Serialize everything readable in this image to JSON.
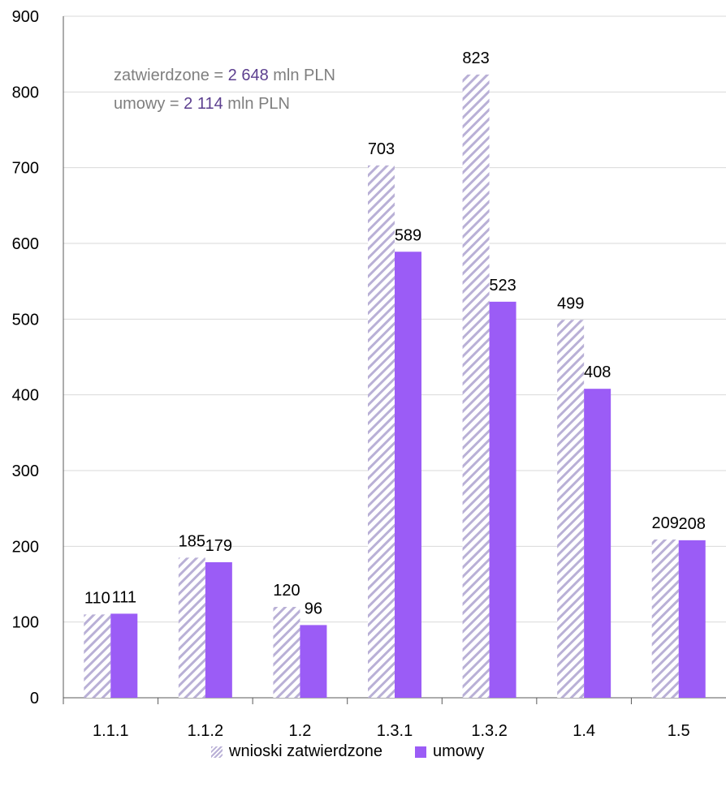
{
  "chart_data": {
    "type": "bar",
    "categories": [
      "1.1.1",
      "1.1.2",
      "1.2",
      "1.3.1",
      "1.3.2",
      "1.4",
      "1.5"
    ],
    "series": [
      {
        "name": "wnioski zatwierdzone",
        "values": [
          110,
          185,
          120,
          703,
          823,
          499,
          209
        ],
        "color": "#b9b0d6",
        "pattern": "hatched"
      },
      {
        "name": "umowy",
        "values": [
          111,
          179,
          96,
          589,
          523,
          408,
          208
        ],
        "color": "#9b5cf6",
        "pattern": "solid"
      }
    ],
    "data_labels": {
      "wnioski zatwierdzone": [
        "110",
        "185",
        "120",
        "703",
        "823",
        "499",
        "209"
      ],
      "umowy": [
        "111",
        "179",
        "96",
        "589",
        "523",
        "408",
        "208"
      ]
    },
    "ylim": [
      0,
      900
    ],
    "yticks": [
      0,
      100,
      200,
      300,
      400,
      500,
      600,
      700,
      800,
      900
    ],
    "grid": true,
    "legend_position": "bottom",
    "title": "",
    "xlabel": "",
    "ylabel": ""
  },
  "annotation": {
    "line1_prefix": "zatwierdzone = ",
    "line1_value": "2 648",
    "line1_suffix": " mln PLN",
    "line2_prefix": "umowy = ",
    "line2_value": "2 114",
    "line2_suffix": " mln PLN"
  },
  "legend": {
    "item1": "wnioski zatwierdzone",
    "item2": "umowy"
  }
}
